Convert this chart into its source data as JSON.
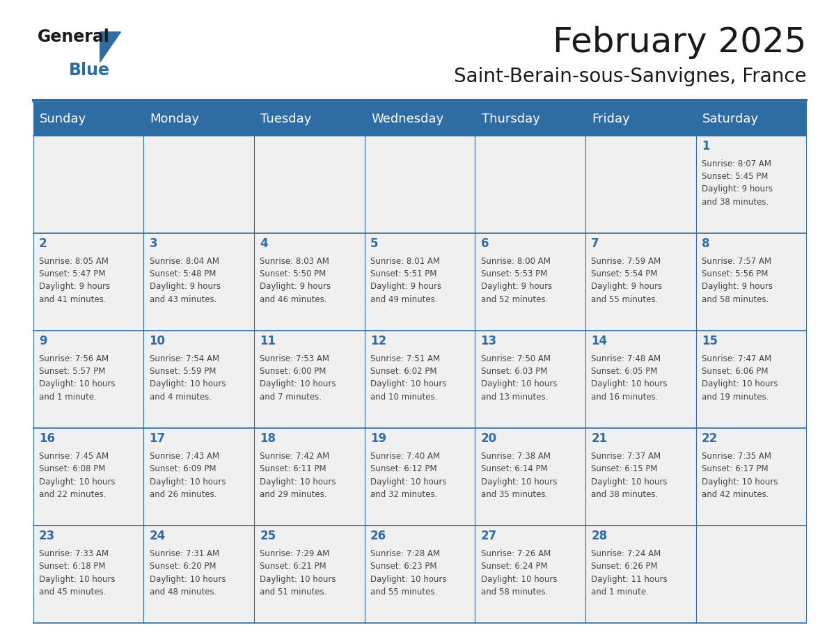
{
  "title": "February 2025",
  "subtitle": "Saint-Berain-sous-Sanvignes, France",
  "header_bg_color": "#2E6DA4",
  "header_text_color": "#FFFFFF",
  "cell_bg_color": "#F0F0F0",
  "day_number_color": "#2E6DA4",
  "text_color": "#444444",
  "border_color": "#2E6DA4",
  "days_of_week": [
    "Sunday",
    "Monday",
    "Tuesday",
    "Wednesday",
    "Thursday",
    "Friday",
    "Saturday"
  ],
  "logo_color1": "#1a1a1a",
  "logo_color2": "#2E6DA4",
  "title_fontsize": 36,
  "subtitle_fontsize": 20,
  "header_fontsize": 13,
  "day_num_fontsize": 12,
  "cell_fontsize": 8.5,
  "calendar_data": [
    [
      {
        "day": "",
        "lines": []
      },
      {
        "day": "",
        "lines": []
      },
      {
        "day": "",
        "lines": []
      },
      {
        "day": "",
        "lines": []
      },
      {
        "day": "",
        "lines": []
      },
      {
        "day": "",
        "lines": []
      },
      {
        "day": "1",
        "lines": [
          "Sunrise: 8:07 AM",
          "Sunset: 5:45 PM",
          "Daylight: 9 hours",
          "and 38 minutes."
        ]
      }
    ],
    [
      {
        "day": "2",
        "lines": [
          "Sunrise: 8:05 AM",
          "Sunset: 5:47 PM",
          "Daylight: 9 hours",
          "and 41 minutes."
        ]
      },
      {
        "day": "3",
        "lines": [
          "Sunrise: 8:04 AM",
          "Sunset: 5:48 PM",
          "Daylight: 9 hours",
          "and 43 minutes."
        ]
      },
      {
        "day": "4",
        "lines": [
          "Sunrise: 8:03 AM",
          "Sunset: 5:50 PM",
          "Daylight: 9 hours",
          "and 46 minutes."
        ]
      },
      {
        "day": "5",
        "lines": [
          "Sunrise: 8:01 AM",
          "Sunset: 5:51 PM",
          "Daylight: 9 hours",
          "and 49 minutes."
        ]
      },
      {
        "day": "6",
        "lines": [
          "Sunrise: 8:00 AM",
          "Sunset: 5:53 PM",
          "Daylight: 9 hours",
          "and 52 minutes."
        ]
      },
      {
        "day": "7",
        "lines": [
          "Sunrise: 7:59 AM",
          "Sunset: 5:54 PM",
          "Daylight: 9 hours",
          "and 55 minutes."
        ]
      },
      {
        "day": "8",
        "lines": [
          "Sunrise: 7:57 AM",
          "Sunset: 5:56 PM",
          "Daylight: 9 hours",
          "and 58 minutes."
        ]
      }
    ],
    [
      {
        "day": "9",
        "lines": [
          "Sunrise: 7:56 AM",
          "Sunset: 5:57 PM",
          "Daylight: 10 hours",
          "and 1 minute."
        ]
      },
      {
        "day": "10",
        "lines": [
          "Sunrise: 7:54 AM",
          "Sunset: 5:59 PM",
          "Daylight: 10 hours",
          "and 4 minutes."
        ]
      },
      {
        "day": "11",
        "lines": [
          "Sunrise: 7:53 AM",
          "Sunset: 6:00 PM",
          "Daylight: 10 hours",
          "and 7 minutes."
        ]
      },
      {
        "day": "12",
        "lines": [
          "Sunrise: 7:51 AM",
          "Sunset: 6:02 PM",
          "Daylight: 10 hours",
          "and 10 minutes."
        ]
      },
      {
        "day": "13",
        "lines": [
          "Sunrise: 7:50 AM",
          "Sunset: 6:03 PM",
          "Daylight: 10 hours",
          "and 13 minutes."
        ]
      },
      {
        "day": "14",
        "lines": [
          "Sunrise: 7:48 AM",
          "Sunset: 6:05 PM",
          "Daylight: 10 hours",
          "and 16 minutes."
        ]
      },
      {
        "day": "15",
        "lines": [
          "Sunrise: 7:47 AM",
          "Sunset: 6:06 PM",
          "Daylight: 10 hours",
          "and 19 minutes."
        ]
      }
    ],
    [
      {
        "day": "16",
        "lines": [
          "Sunrise: 7:45 AM",
          "Sunset: 6:08 PM",
          "Daylight: 10 hours",
          "and 22 minutes."
        ]
      },
      {
        "day": "17",
        "lines": [
          "Sunrise: 7:43 AM",
          "Sunset: 6:09 PM",
          "Daylight: 10 hours",
          "and 26 minutes."
        ]
      },
      {
        "day": "18",
        "lines": [
          "Sunrise: 7:42 AM",
          "Sunset: 6:11 PM",
          "Daylight: 10 hours",
          "and 29 minutes."
        ]
      },
      {
        "day": "19",
        "lines": [
          "Sunrise: 7:40 AM",
          "Sunset: 6:12 PM",
          "Daylight: 10 hours",
          "and 32 minutes."
        ]
      },
      {
        "day": "20",
        "lines": [
          "Sunrise: 7:38 AM",
          "Sunset: 6:14 PM",
          "Daylight: 10 hours",
          "and 35 minutes."
        ]
      },
      {
        "day": "21",
        "lines": [
          "Sunrise: 7:37 AM",
          "Sunset: 6:15 PM",
          "Daylight: 10 hours",
          "and 38 minutes."
        ]
      },
      {
        "day": "22",
        "lines": [
          "Sunrise: 7:35 AM",
          "Sunset: 6:17 PM",
          "Daylight: 10 hours",
          "and 42 minutes."
        ]
      }
    ],
    [
      {
        "day": "23",
        "lines": [
          "Sunrise: 7:33 AM",
          "Sunset: 6:18 PM",
          "Daylight: 10 hours",
          "and 45 minutes."
        ]
      },
      {
        "day": "24",
        "lines": [
          "Sunrise: 7:31 AM",
          "Sunset: 6:20 PM",
          "Daylight: 10 hours",
          "and 48 minutes."
        ]
      },
      {
        "day": "25",
        "lines": [
          "Sunrise: 7:29 AM",
          "Sunset: 6:21 PM",
          "Daylight: 10 hours",
          "and 51 minutes."
        ]
      },
      {
        "day": "26",
        "lines": [
          "Sunrise: 7:28 AM",
          "Sunset: 6:23 PM",
          "Daylight: 10 hours",
          "and 55 minutes."
        ]
      },
      {
        "day": "27",
        "lines": [
          "Sunrise: 7:26 AM",
          "Sunset: 6:24 PM",
          "Daylight: 10 hours",
          "and 58 minutes."
        ]
      },
      {
        "day": "28",
        "lines": [
          "Sunrise: 7:24 AM",
          "Sunset: 6:26 PM",
          "Daylight: 11 hours",
          "and 1 minute."
        ]
      },
      {
        "day": "",
        "lines": []
      }
    ]
  ]
}
